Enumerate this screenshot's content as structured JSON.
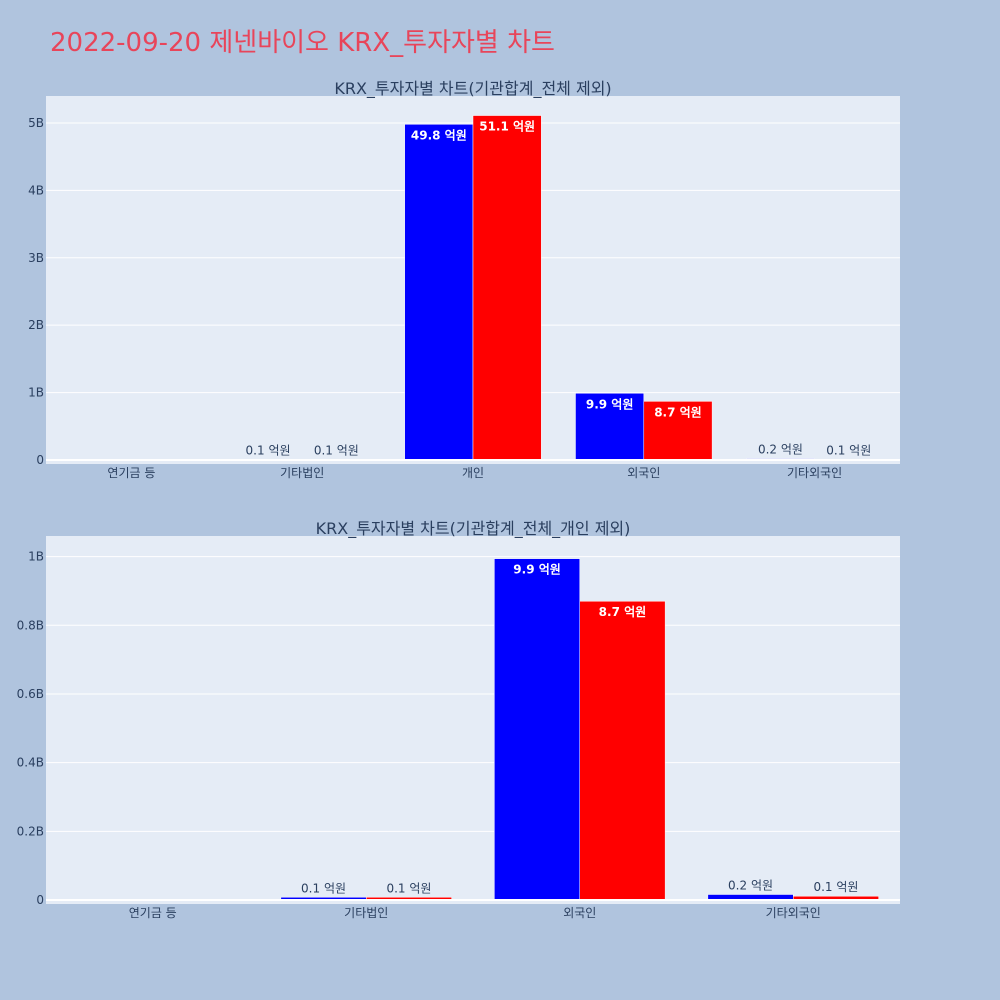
{
  "title": "2022-09-20 제넨바이오 KRX_투자자별 차트",
  "colors": {
    "series_a": "#0000ff",
    "series_b": "#ff0000",
    "background": "#b0c4de",
    "plot": "#e5ecf6",
    "title": "#e8455a"
  },
  "chart_data": [
    {
      "type": "bar",
      "title": "KRX_투자자별 차트(기관합계_전체 제외)",
      "categories": [
        "연기금 등",
        "기타법인",
        "개인",
        "외국인",
        "기타외국인"
      ],
      "series": [
        {
          "values": [
            0,
            10000000,
            4980000000,
            990000000,
            20000000
          ],
          "labels": [
            "",
            "0.1 억원",
            "49.8 억원",
            "9.9 억원",
            "0.2 억원"
          ]
        },
        {
          "values": [
            0,
            10000000,
            5110000000,
            870000000,
            10000000
          ],
          "labels": [
            "",
            "0.1 억원",
            "51.1 억원",
            "8.7 억원",
            "0.1 억원"
          ]
        }
      ],
      "ylim": [
        0,
        5400000000
      ],
      "yticks": [
        0,
        1000000000,
        2000000000,
        3000000000,
        4000000000,
        5000000000
      ],
      "yticklabels": [
        "0",
        "1B",
        "2B",
        "3B",
        "4B",
        "5B"
      ],
      "grid": true
    },
    {
      "type": "bar",
      "title": "KRX_투자자별 차트(기관합계_전체_개인 제외)",
      "categories": [
        "연기금 등",
        "기타법인",
        "외국인",
        "기타외국인"
      ],
      "series": [
        {
          "values": [
            0,
            8000000,
            994000000,
            16000000
          ],
          "labels": [
            "",
            "0.1 억원",
            "9.9 억원",
            "0.2 억원"
          ]
        },
        {
          "values": [
            0,
            8000000,
            870000000,
            11000000
          ],
          "labels": [
            "",
            "0.1 억원",
            "8.7 억원",
            "0.1 억원"
          ]
        }
      ],
      "ylim": [
        0,
        1060000000
      ],
      "yticks": [
        0,
        200000000,
        400000000,
        600000000,
        800000000,
        1000000000
      ],
      "yticklabels": [
        "0",
        "0.2B",
        "0.4B",
        "0.6B",
        "0.8B",
        "1B"
      ],
      "grid": true
    }
  ]
}
